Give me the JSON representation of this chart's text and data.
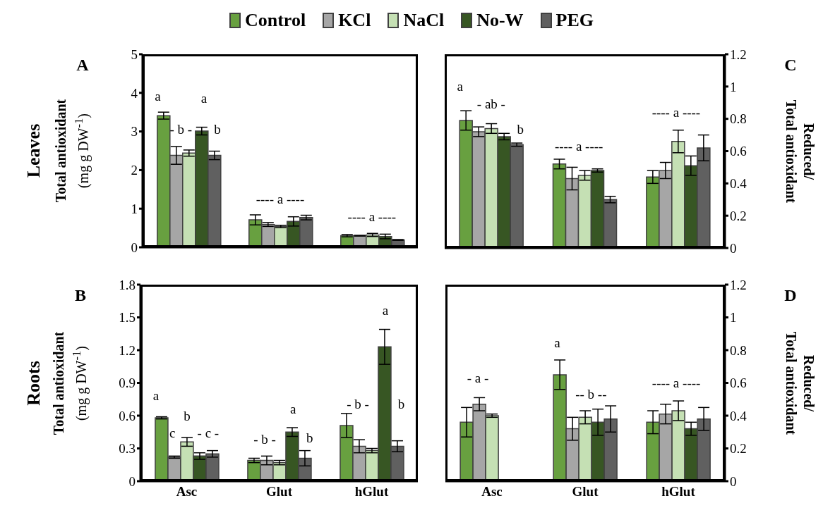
{
  "chart_data": [
    {
      "type": "bar",
      "ylabel": "Total antioxidant\n(mg g DW$^{-1}$)",
      "categories": [
        null,
        null,
        null
      ],
      "ylim": [
        0,
        5
      ],
      "yticks": [
        0,
        1,
        2,
        3,
        4,
        5
      ],
      "tick_labels": "y",
      "legend": "top",
      "series": [
        {
          "name": "Control",
          "color": "#68a040",
          "values": [
            3.41,
            0.71,
            0.3
          ],
          "errors": [
            0.09,
            0.13,
            0.03
          ]
        },
        {
          "name": "KCl",
          "color": "#a6a6a6",
          "values": [
            2.38,
            0.59,
            0.3
          ],
          "errors": [
            0.23,
            0.05,
            0.01
          ]
        },
        {
          "name": "NaCl",
          "color": "#c5e0b4",
          "values": [
            2.44,
            0.54,
            0.32
          ],
          "errors": [
            0.08,
            0.03,
            0.04
          ]
        },
        {
          "name": "No-W",
          "color": "#375623",
          "values": [
            3.01,
            0.67,
            0.28
          ],
          "errors": [
            0.1,
            0.12,
            0.06
          ]
        },
        {
          "name": "PEG",
          "color": "#606060",
          "values": [
            2.38,
            0.77,
            0.19
          ],
          "errors": [
            0.11,
            0.06,
            0.01
          ]
        }
      ],
      "annotations": [
        "A",
        "Leaves",
        "a",
        "- b -",
        "a",
        "b",
        "---- a ----",
        "---- a ----"
      ]
    },
    {
      "type": "bar",
      "ylabel": "Reduced/\nTotal antioxidant",
      "categories": [
        null,
        null,
        null
      ],
      "ylim": [
        0,
        1.2
      ],
      "yticks": [
        0,
        0.2,
        0.4,
        0.6,
        0.8,
        1,
        1.2
      ],
      "tick_labels": "y",
      "series": [
        {
          "color": "#68a040",
          "values": [
            0.79,
            0.52,
            0.44
          ],
          "errors": [
            0.06,
            0.03,
            0.04
          ]
        },
        {
          "color": "#a6a6a6",
          "values": [
            0.72,
            0.43,
            0.48
          ],
          "errors": [
            0.03,
            0.07,
            0.05
          ]
        },
        {
          "color": "#c5e0b4",
          "values": [
            0.74,
            0.45,
            0.66
          ],
          "errors": [
            0.03,
            0.03,
            0.07
          ]
        },
        {
          "color": "#375623",
          "values": [
            0.69,
            0.48,
            0.51
          ],
          "errors": [
            0.02,
            0.01,
            0.06
          ]
        },
        {
          "color": "#606060",
          "values": [
            0.64,
            0.3,
            0.62
          ],
          "errors": [
            0.01,
            0.02,
            0.08
          ]
        }
      ],
      "annotations": [
        "C",
        "a",
        "- ab -",
        "b",
        "---- a ----",
        "---- a ----"
      ]
    },
    {
      "type": "bar",
      "ylabel": "Total antioxidant\n(mg g DW$^{-1}$)",
      "categories": [
        "Asc",
        "Glut",
        "hGlut"
      ],
      "ylim": [
        0,
        1.8
      ],
      "yticks": [
        0,
        0.3,
        0.6,
        0.9,
        1.2,
        1.5,
        1.8
      ],
      "series": [
        {
          "color": "#68a040",
          "values": [
            0.58,
            0.19,
            0.51
          ],
          "errors": [
            0.01,
            0.02,
            0.11
          ]
        },
        {
          "color": "#a6a6a6",
          "values": [
            0.22,
            0.19,
            0.32
          ],
          "errors": [
            0.01,
            0.04,
            0.06
          ]
        },
        {
          "color": "#c5e0b4",
          "values": [
            0.36,
            0.17,
            0.28
          ],
          "errors": [
            0.04,
            0.02,
            0.02
          ]
        },
        {
          "color": "#375623",
          "values": [
            0.23,
            0.45,
            1.23
          ],
          "errors": [
            0.03,
            0.04,
            0.16
          ]
        },
        {
          "color": "#606060",
          "values": [
            0.25,
            0.21,
            0.32
          ],
          "errors": [
            0.03,
            0.07,
            0.05
          ]
        }
      ],
      "annotations": [
        "B",
        "Roots",
        "a",
        "c",
        "b",
        "- c -",
        "- b -",
        "a",
        "b",
        "- b -",
        "a",
        "b"
      ]
    },
    {
      "type": "bar",
      "ylabel": "Reduced/\nTotal antioxidant",
      "categories": [
        "Asc",
        "Glut",
        "hGlut"
      ],
      "ylim": [
        0,
        1.2
      ],
      "yticks": [
        0,
        0.2,
        0.4,
        0.6,
        0.8,
        1,
        1.2
      ],
      "series": [
        {
          "color": "#68a040",
          "values": [
            0.36,
            0.65,
            0.36
          ],
          "errors": [
            0.09,
            0.09,
            0.07
          ]
        },
        {
          "color": "#a6a6a6",
          "values": [
            0.47,
            0.32,
            0.41
          ],
          "errors": [
            0.04,
            0.07,
            0.06
          ]
        },
        {
          "color": "#c5e0b4",
          "values": [
            0.4,
            0.39,
            0.43
          ],
          "errors": [
            0.01,
            0.04,
            0.06
          ]
        },
        {
          "color": "#375623",
          "values": [
            null,
            0.36,
            0.32
          ],
          "errors": [
            null,
            0.08,
            0.04
          ]
        },
        {
          "color": "#606060",
          "values": [
            null,
            0.38,
            0.38
          ],
          "errors": [
            null,
            0.08,
            0.07
          ]
        }
      ],
      "annotations": [
        "D",
        "- a -",
        "a",
        "-- b --",
        "---- a ----"
      ]
    }
  ]
}
